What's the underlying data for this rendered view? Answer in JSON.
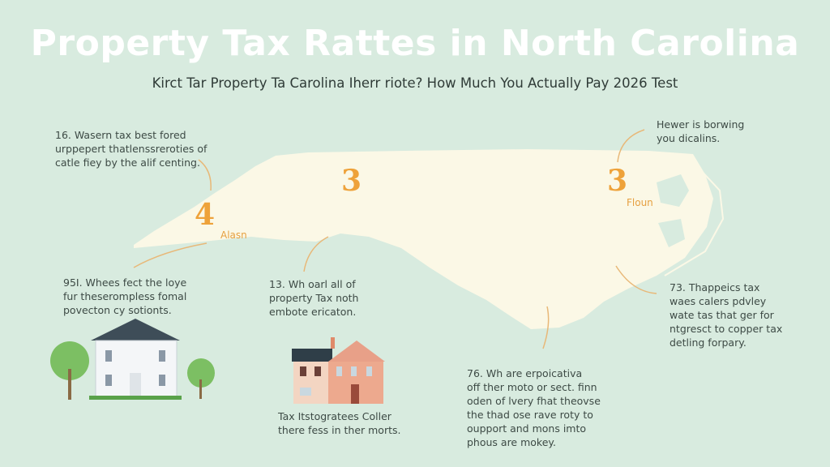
{
  "header": {
    "title": "Property Tax Rattes in North Carolina",
    "subtitle": "Kirct Tar Property Ta Carolina Iherr riote? How Much You Actually Pay 2026 Test"
  },
  "map": {
    "regions": [
      {
        "number": "4",
        "label": "Alasn"
      },
      {
        "number": "3",
        "label": ""
      },
      {
        "number": "3",
        "label": "Floun"
      }
    ]
  },
  "notes": [
    {
      "lines": [
        "16. Wasern tax best fored",
        "urppepert thatlenssreroties of",
        "catle fiey by the alif centing."
      ]
    },
    {
      "lines": [
        "95I. Whees fect the loye",
        "fur theserompless fomal",
        "povecton cy sotionts."
      ]
    },
    {
      "lines": [
        "13. Wh oarl all of",
        "property Tax noth",
        "embote ericaton."
      ]
    },
    {
      "lines": [
        "Tax Itstogratees Coller",
        "there fess in ther morts."
      ]
    },
    {
      "lines": [
        "76. Wh are erpoicativa",
        "off ther moto or sect. finn",
        "oden of lvery fhat theovse",
        "the thad ose rave roty to",
        "oupport and mons imto",
        "phous are mokey."
      ]
    },
    {
      "lines": [
        "Hewer is borwing",
        "you dicalins."
      ]
    },
    {
      "lines": [
        "73. Thappeics tax",
        "waes calers pdvley",
        "wate tas that ger for",
        "ntgresct to copper tax",
        "detling forpary."
      ]
    }
  ],
  "colors": {
    "background": "#d8ebdf",
    "map_fill": "#fbf8e6",
    "accent": "#eea23a",
    "text": "#3d4a45"
  }
}
